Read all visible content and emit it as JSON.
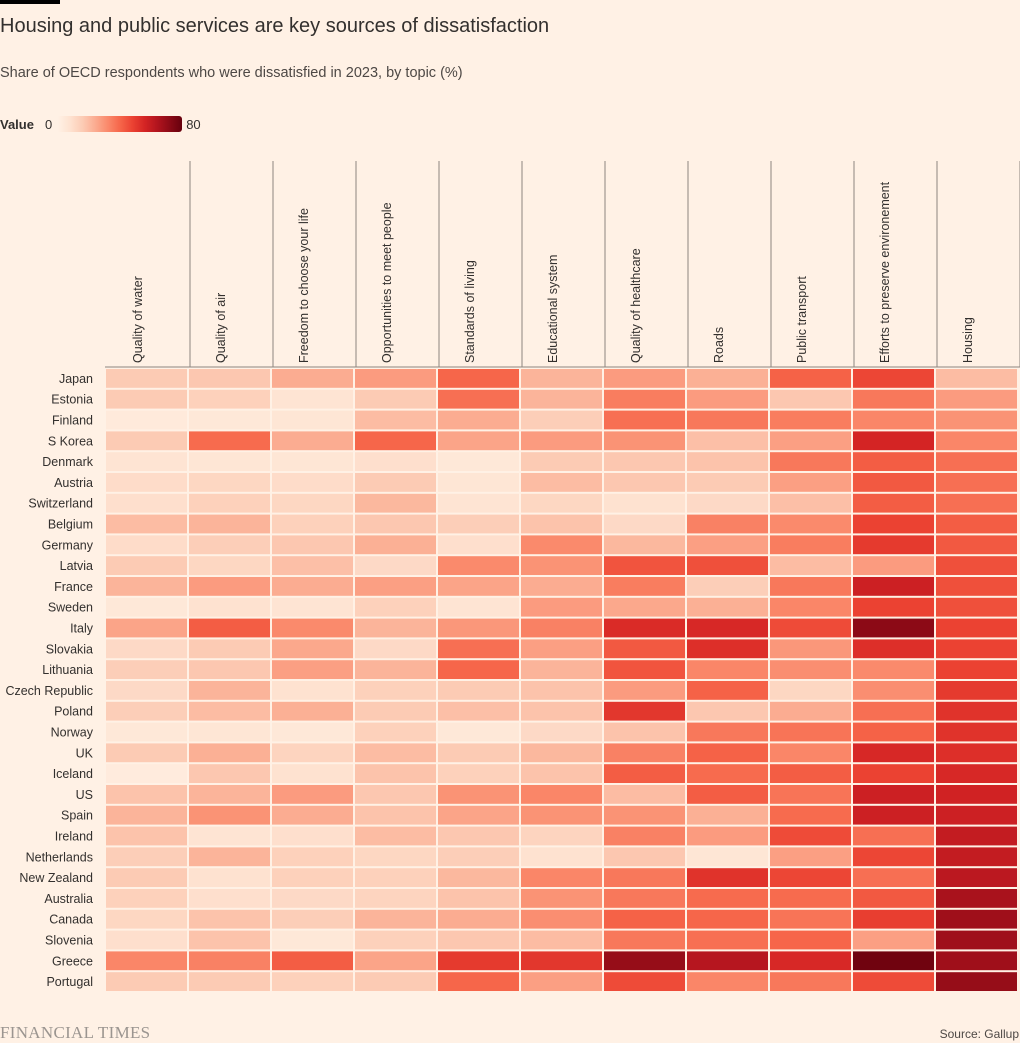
{
  "header": {
    "title": "Housing and public services are key sources of dissatisfaction",
    "subtitle": "Share of OECD respondents who were dissatisfied in 2023, by topic (%)"
  },
  "legend": {
    "title": "Value",
    "min_label": "0",
    "max_label": "80"
  },
  "footer": {
    "logo": "FINANCIAL TIMES",
    "source": "Source: Gallup"
  },
  "colors": {
    "background": "#fff1e5",
    "scale_low": "#fff1e5",
    "scale_high": "#66000d"
  },
  "chart_data": {
    "type": "heatmap",
    "value_range": [
      0,
      80
    ],
    "columns": [
      "Quality of water",
      "Quality of air",
      "Freedom to choose  your life",
      "Opportunities to meet people",
      "Standards of living",
      "Educational system",
      "Quality of healthcare",
      "Roads",
      "Public transport",
      "Efforts to preserve environement",
      "Housing"
    ],
    "rows": [
      "Japan",
      "Estonia",
      "Finland",
      "S Korea",
      "Denmark",
      "Austria",
      "Switzerland",
      "Belgium",
      "Germany",
      "Latvia",
      "France",
      "Sweden",
      "Italy",
      "Slovakia",
      "Lithuania",
      "Czech Republic",
      "Poland",
      "Norway",
      "UK",
      "Iceland",
      "US",
      "Spain",
      "Ireland",
      "Netherlands",
      "New Zealand",
      "Australia",
      "Canada",
      "Slovenia",
      "Greece",
      "Portugal"
    ],
    "values": [
      [
        16,
        17,
        24,
        28,
        40,
        22,
        28,
        23,
        41,
        47,
        20
      ],
      [
        16,
        14,
        7,
        16,
        38,
        22,
        35,
        28,
        17,
        36,
        28
      ],
      [
        4,
        5,
        6,
        20,
        24,
        15,
        38,
        36,
        35,
        33,
        30
      ],
      [
        16,
        39,
        24,
        40,
        26,
        28,
        30,
        19,
        27,
        56,
        33
      ],
      [
        7,
        6,
        6,
        9,
        5,
        16,
        17,
        18,
        36,
        42,
        38
      ],
      [
        10,
        12,
        10,
        16,
        6,
        20,
        17,
        16,
        27,
        43,
        38
      ],
      [
        9,
        14,
        12,
        21,
        7,
        12,
        8,
        11,
        19,
        42,
        38
      ],
      [
        20,
        22,
        14,
        17,
        15,
        18,
        11,
        34,
        32,
        48,
        42
      ],
      [
        10,
        15,
        17,
        23,
        9,
        32,
        21,
        27,
        35,
        50,
        43
      ],
      [
        16,
        12,
        19,
        11,
        32,
        30,
        44,
        45,
        20,
        28,
        45
      ],
      [
        22,
        28,
        24,
        27,
        26,
        24,
        35,
        15,
        36,
        58,
        45
      ],
      [
        5,
        8,
        7,
        14,
        7,
        28,
        25,
        23,
        33,
        48,
        45
      ],
      [
        26,
        42,
        32,
        22,
        29,
        34,
        54,
        55,
        46,
        72,
        48
      ],
      [
        11,
        16,
        25,
        11,
        38,
        27,
        43,
        53,
        29,
        53,
        48
      ],
      [
        15,
        17,
        27,
        22,
        40,
        22,
        44,
        33,
        31,
        32,
        48
      ],
      [
        11,
        22,
        8,
        14,
        16,
        18,
        28,
        41,
        12,
        31,
        50
      ],
      [
        15,
        20,
        23,
        16,
        19,
        18,
        51,
        17,
        24,
        38,
        52
      ],
      [
        5,
        6,
        5,
        14,
        5,
        11,
        18,
        36,
        37,
        41,
        52
      ],
      [
        16,
        23,
        13,
        20,
        16,
        21,
        34,
        41,
        33,
        55,
        53
      ],
      [
        3,
        17,
        8,
        18,
        14,
        18,
        42,
        39,
        42,
        48,
        55
      ],
      [
        18,
        22,
        28,
        17,
        30,
        33,
        20,
        42,
        37,
        58,
        57
      ],
      [
        22,
        30,
        24,
        18,
        26,
        30,
        30,
        23,
        39,
        58,
        58
      ],
      [
        18,
        7,
        9,
        20,
        17,
        13,
        34,
        28,
        46,
        38,
        60
      ],
      [
        15,
        22,
        14,
        12,
        15,
        8,
        17,
        6,
        27,
        47,
        60
      ],
      [
        16,
        8,
        14,
        14,
        21,
        33,
        36,
        52,
        47,
        38,
        62
      ],
      [
        14,
        9,
        11,
        13,
        18,
        30,
        36,
        39,
        39,
        43,
        66
      ],
      [
        12,
        18,
        15,
        22,
        24,
        31,
        41,
        40,
        37,
        49,
        68
      ],
      [
        9,
        18,
        5,
        14,
        17,
        20,
        36,
        38,
        40,
        27,
        68
      ],
      [
        33,
        34,
        42,
        26,
        50,
        51,
        70,
        63,
        55,
        78,
        68
      ],
      [
        16,
        16,
        14,
        16,
        40,
        27,
        46,
        33,
        36,
        46,
        70
      ]
    ]
  }
}
